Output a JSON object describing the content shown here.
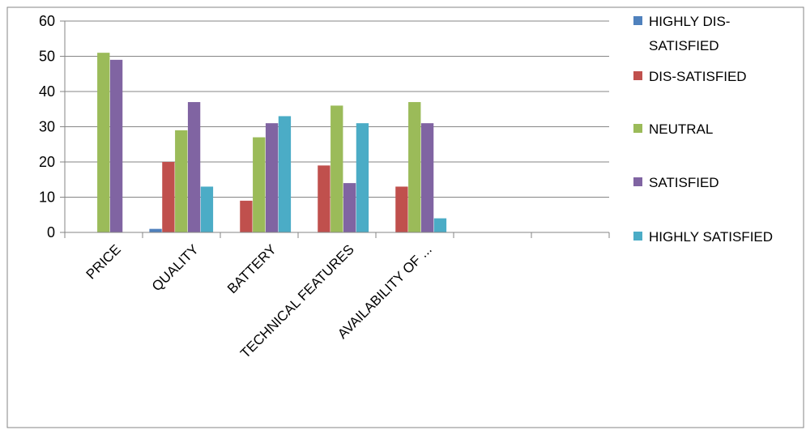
{
  "chart_data": {
    "type": "bar",
    "categories": [
      "PRICE",
      "QUALITY",
      "BATTERY",
      "TECHNICAL FEATURES",
      "AVAILABILITY OF ...",
      "",
      ""
    ],
    "series": [
      {
        "name": "HIGHLY DIS-SATISFIED",
        "color": "#4F81BD",
        "values": [
          0,
          1,
          0,
          0,
          0,
          null,
          null
        ]
      },
      {
        "name": "DIS-SATISFIED",
        "color": "#C0504D",
        "values": [
          0,
          20,
          9,
          19,
          13,
          null,
          null
        ]
      },
      {
        "name": "NEUTRAL",
        "color": "#9BBB59",
        "values": [
          51,
          29,
          27,
          36,
          37,
          null,
          null
        ]
      },
      {
        "name": "SATISFIED",
        "color": "#8064A2",
        "values": [
          49,
          37,
          31,
          14,
          31,
          null,
          null
        ]
      },
      {
        "name": "HIGHLY SATISFIED",
        "color": "#4BACC6",
        "values": [
          0,
          13,
          33,
          31,
          4,
          null,
          null
        ]
      }
    ],
    "legend_lines": [
      [
        "HIGHLY DIS-",
        "SATISFIED"
      ],
      [
        "DIS-SATISFIED"
      ],
      [
        "NEUTRAL"
      ],
      [
        "SATISFIED"
      ],
      [
        "HIGHLY SATISFIED"
      ]
    ],
    "y_ticks": [
      0,
      10,
      20,
      30,
      40,
      50,
      60
    ],
    "ylim": [
      0,
      60
    ],
    "grid": true,
    "legend_position": "right",
    "title": "",
    "xlabel": "",
    "ylabel": ""
  }
}
